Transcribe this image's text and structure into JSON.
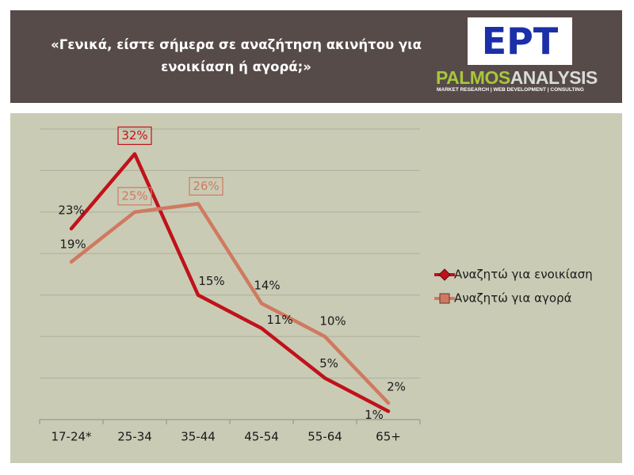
{
  "header": {
    "title": "«Γενικά, είστε σήμερα σε αναζήτηση ακινήτου για ενοικίαση ή αγορά;»",
    "logo": {
      "brand": "ΕΡΤ",
      "name_part1": "PALMOS",
      "name_part2": "ANALYSIS",
      "tagline": "MARKET RESEARCH | WEB DEVELOPMENT | CONSULTING"
    }
  },
  "chart_data": {
    "type": "line",
    "categories": [
      "17-24*",
      "25-34",
      "35-44",
      "45-54",
      "55-64",
      "65+"
    ],
    "series": [
      {
        "name": "Αναζητώ για ενοικίαση",
        "color": "#c0121a",
        "marker": "diamond",
        "values": [
          23,
          32,
          15,
          11,
          5,
          1
        ],
        "value_labels": [
          "23%",
          "32%",
          "15%",
          "11%",
          "5%",
          "1%"
        ],
        "boxed_labels": [
          1
        ]
      },
      {
        "name": "Αναζητώ για αγορά",
        "color": "#cf7a60",
        "marker": "square",
        "values": [
          19,
          25,
          26,
          14,
          10,
          2
        ],
        "value_labels": [
          "19%",
          "25%",
          "26%",
          "14%",
          "10%",
          "2%"
        ],
        "boxed_labels": [
          1,
          2
        ]
      }
    ],
    "ylim": [
      0,
      35
    ],
    "yticks": [
      0,
      5,
      10,
      15,
      20,
      25,
      30,
      35
    ],
    "grid": true
  }
}
